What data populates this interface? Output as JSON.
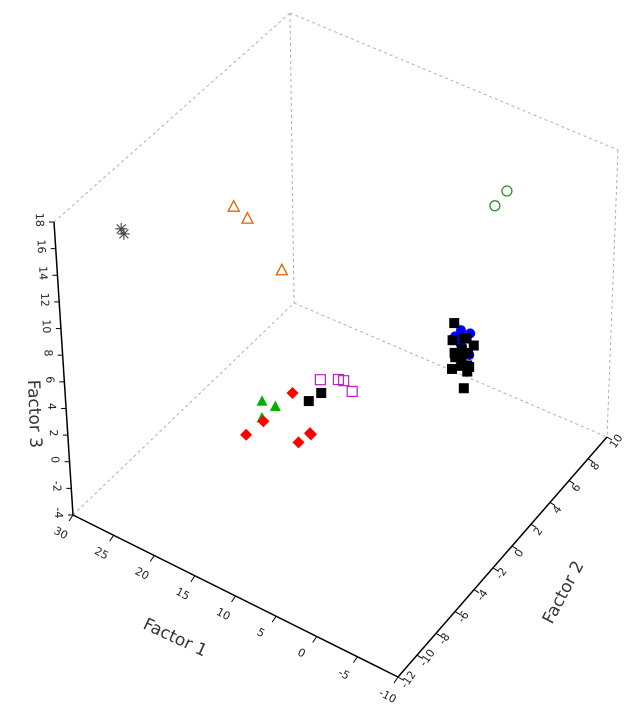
{
  "chart_data": {
    "type": "scatter",
    "title": "",
    "xlabel": "Factor 1",
    "ylabel": "Factor 2",
    "zlabel": "Factor 3",
    "x_ticks": [
      "30",
      "25",
      "20",
      "15",
      "10",
      "5",
      "0",
      "-5",
      "-10"
    ],
    "y_ticks": [
      "-12",
      "-10",
      "-8",
      "-6",
      "-4",
      "-2",
      "0",
      "2",
      "4",
      "6",
      "8",
      "10"
    ],
    "z_ticks": [
      "-4",
      "-2",
      "0",
      "2",
      "4",
      "6",
      "8",
      "10",
      "12",
      "14",
      "16",
      "18"
    ],
    "xlim": [
      -10,
      30
    ],
    "ylim": [
      -12,
      10
    ],
    "zlim": [
      -4,
      18
    ],
    "grid": false,
    "series": [
      {
        "marker": "asterisk",
        "color": "#444444",
        "points": [
          {
            "x": 28,
            "y": -7,
            "z": 14
          },
          {
            "x": 29,
            "y": -6,
            "z": 12.5
          }
        ]
      },
      {
        "marker": "triangle-open",
        "color": "#e06000",
        "points": [
          {
            "x": 20,
            "y": -2,
            "z": 14
          },
          {
            "x": 19,
            "y": -1.5,
            "z": 13
          },
          {
            "x": 17,
            "y": 0,
            "z": 8.5
          }
        ]
      },
      {
        "marker": "circle-open",
        "color": "#1e8c1e",
        "points": [
          {
            "x": 2,
            "y": 11,
            "z": 10
          },
          {
            "x": 3,
            "y": 10.5,
            "z": 9
          }
        ]
      },
      {
        "marker": "circle-filled",
        "color": "#0000ff",
        "points": [
          {
            "x": 2,
            "y": 5,
            "z": 4
          },
          {
            "x": 2,
            "y": 5.5,
            "z": 3
          },
          {
            "x": 1.5,
            "y": 5,
            "z": 2
          },
          {
            "x": 2.5,
            "y": 6,
            "z": 3.5
          },
          {
            "x": 1,
            "y": 5.5,
            "z": 2.5
          },
          {
            "x": 2,
            "y": 6.5,
            "z": 3
          },
          {
            "x": 1.5,
            "y": 4.5,
            "z": 3
          }
        ]
      },
      {
        "marker": "square-filled",
        "color": "#000000",
        "points": [
          {
            "x": 2,
            "y": 5,
            "z": 5
          },
          {
            "x": 2,
            "y": 5.5,
            "z": 2
          },
          {
            "x": 2.5,
            "y": 6.5,
            "z": 2.5
          },
          {
            "x": 1.5,
            "y": 4.5,
            "z": 3
          },
          {
            "x": 2,
            "y": 6,
            "z": 1
          },
          {
            "x": 1,
            "y": 5.2,
            "z": 1.5
          },
          {
            "x": 3,
            "y": 5.5,
            "z": 3
          },
          {
            "x": 1.8,
            "y": 6,
            "z": 2
          },
          {
            "x": 2.2,
            "y": 5,
            "z": 2.7
          },
          {
            "x": 1.2,
            "y": 4.8,
            "z": 2.2
          },
          {
            "x": 2.8,
            "y": 6.2,
            "z": 1.8
          },
          {
            "x": 1.5,
            "y": 5.8,
            "z": 1.2
          },
          {
            "x": 2.4,
            "y": 4.8,
            "z": 1.6
          },
          {
            "x": 1,
            "y": 6,
            "z": 2.8
          },
          {
            "x": 3.2,
            "y": 6.8,
            "z": 2
          },
          {
            "x": 0.8,
            "y": 4.6,
            "z": 0.8
          },
          {
            "x": 13,
            "y": 0,
            "z": 0.5
          },
          {
            "x": 14,
            "y": -0.5,
            "z": 0
          }
        ]
      },
      {
        "marker": "square-open",
        "color": "#c020c0",
        "points": [
          {
            "x": 13,
            "y": 0,
            "z": 1.5
          },
          {
            "x": 12,
            "y": 1,
            "z": 1
          },
          {
            "x": 12,
            "y": 1.5,
            "z": 0.5
          },
          {
            "x": 11,
            "y": 1.5,
            "z": 0
          }
        ]
      },
      {
        "marker": "triangle-filled",
        "color": "#00b000",
        "points": [
          {
            "x": 18,
            "y": -2,
            "z": 0
          },
          {
            "x": 17,
            "y": -1.5,
            "z": -0.5
          },
          {
            "x": 17.5,
            "y": -2.5,
            "z": -0.7
          }
        ]
      },
      {
        "marker": "diamond-filled",
        "color": "#ff0000",
        "points": [
          {
            "x": 16,
            "y": -0.5,
            "z": 0
          },
          {
            "x": 18,
            "y": -2,
            "z": -1.5
          },
          {
            "x": 19,
            "y": -3,
            "z": -2
          },
          {
            "x": 15,
            "y": -1,
            "z": -3
          },
          {
            "x": 14,
            "y": -0.5,
            "z": -2.5
          },
          {
            "x": 14.5,
            "y": -0.2,
            "z": -2.8
          }
        ]
      }
    ]
  }
}
